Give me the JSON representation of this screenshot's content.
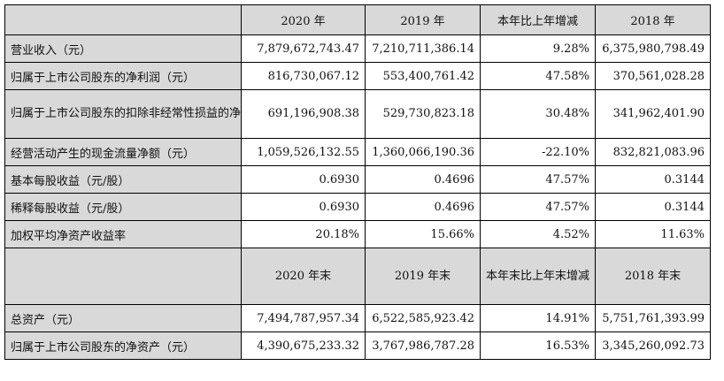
{
  "table": {
    "header1": [
      "",
      "2020 年",
      "2019 年",
      "本年比上年增减",
      "2018 年"
    ],
    "rows1": [
      {
        "label": "营业收入（元）",
        "v2020": "7,879,672,743.47",
        "v2019": "7,210,711,386.14",
        "change": "9.28%",
        "v2018": "6,375,980,798.49"
      },
      {
        "label": "归属于上市公司股东的净利润（元）",
        "v2020": "816,730,067.12",
        "v2019": "553,400,761.42",
        "change": "47.58%",
        "v2018": "370,561,028.28"
      },
      {
        "label": "归属于上市公司股东的扣除非经常性损益的净利润（元）",
        "v2020": "691,196,908.38",
        "v2019": "529,730,823.18",
        "change": "30.48%",
        "v2018": "341,962,401.90"
      },
      {
        "label": "经营活动产生的现金流量净额（元）",
        "v2020": "1,059,526,132.55",
        "v2019": "1,360,066,190.36",
        "change": "-22.10%",
        "v2018": "832,821,083.96"
      },
      {
        "label": "基本每股收益（元/股）",
        "v2020": "0.6930",
        "v2019": "0.4696",
        "change": "47.57%",
        "v2018": "0.3144"
      },
      {
        "label": "稀释每股收益（元/股）",
        "v2020": "0.6930",
        "v2019": "0.4696",
        "change": "47.57%",
        "v2018": "0.3144"
      },
      {
        "label": "加权平均净资产收益率",
        "v2020": "20.18%",
        "v2019": "15.66%",
        "change": "4.52%",
        "v2018": "11.63%"
      }
    ],
    "header2": [
      "",
      "2020 年末",
      "2019 年末",
      "本年末比上年末增减",
      "2018 年末"
    ],
    "rows2": [
      {
        "label": "总资产（元）",
        "v2020": "7,494,787,957.34",
        "v2019": "6,522,585,923.42",
        "change": "14.91%",
        "v2018": "5,751,761,393.99"
      },
      {
        "label": "归属于上市公司股东的净资产（元）",
        "v2020": "4,390,675,233.32",
        "v2019": "3,767,986,787.28",
        "change": "16.53%",
        "v2018": "3,345,260,092.73"
      }
    ]
  }
}
